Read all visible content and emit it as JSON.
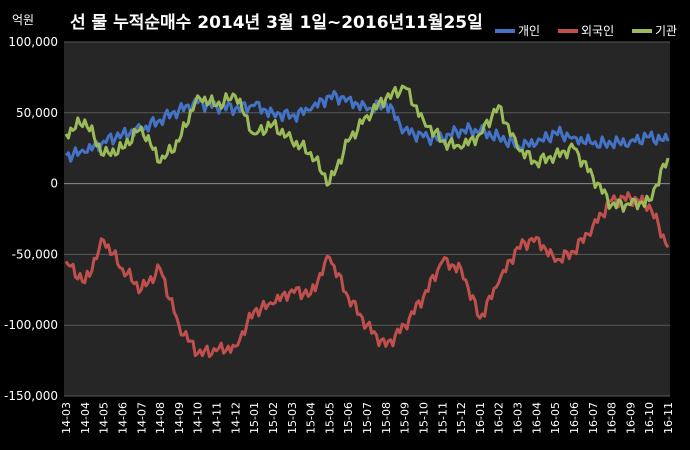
{
  "chart_data": {
    "type": "line",
    "title": "선 물 누적순매수 2014년 3월 1일~2016년11월25일",
    "unit_label": "억원",
    "ylim": [
      -150000,
      100000
    ],
    "yticks": [
      100000,
      50000,
      0,
      -50000,
      -100000,
      -150000
    ],
    "ytick_labels": [
      "100,000",
      "50,000",
      "0",
      "-50,000",
      "-100,000",
      "-150,000"
    ],
    "grid": true,
    "legend_position": "top-right",
    "categories": [
      "14-03",
      "14-04",
      "14-05",
      "14-06",
      "14-07",
      "14-08",
      "14-09",
      "14-10",
      "14-11",
      "14-12",
      "15-01",
      "15-02",
      "15-03",
      "15-04",
      "15-05",
      "15-06",
      "15-07",
      "15-08",
      "15-09",
      "15-10",
      "15-11",
      "15-12",
      "16-01",
      "16-02",
      "16-03",
      "16-04",
      "16-05",
      "16-06",
      "16-07",
      "16-08",
      "16-09",
      "16-10",
      "16-11"
    ],
    "series": [
      {
        "name": "개인",
        "color": "#4472C4",
        "values": [
          20000,
          22000,
          30000,
          35000,
          38000,
          45000,
          52000,
          57000,
          55000,
          53000,
          55000,
          50000,
          48000,
          52000,
          62000,
          60000,
          52000,
          57000,
          38000,
          33000,
          32000,
          38000,
          37000,
          33000,
          27000,
          28000,
          36000,
          33000,
          28000,
          28000,
          30000,
          33000,
          30000
        ]
      },
      {
        "name": "외국인",
        "color": "#C0504D",
        "values": [
          -55000,
          -70000,
          -40000,
          -60000,
          -75000,
          -60000,
          -100000,
          -120000,
          -118000,
          -115000,
          -90000,
          -85000,
          -75000,
          -78000,
          -52000,
          -80000,
          -100000,
          -115000,
          -100000,
          -80000,
          -55000,
          -60000,
          -95000,
          -70000,
          -45000,
          -38000,
          -55000,
          -48000,
          -30000,
          -12000,
          -10000,
          -15000,
          -45000
        ]
      },
      {
        "name": "기관",
        "color": "#9BBB59",
        "values": [
          35000,
          45000,
          20000,
          25000,
          40000,
          15000,
          30000,
          62000,
          55000,
          62000,
          35000,
          42000,
          30000,
          22000,
          0,
          30000,
          48000,
          60000,
          68000,
          45000,
          30000,
          25000,
          35000,
          55000,
          25000,
          15000,
          20000,
          25000,
          5000,
          -15000,
          -15000,
          -12000,
          18000
        ]
      }
    ]
  }
}
